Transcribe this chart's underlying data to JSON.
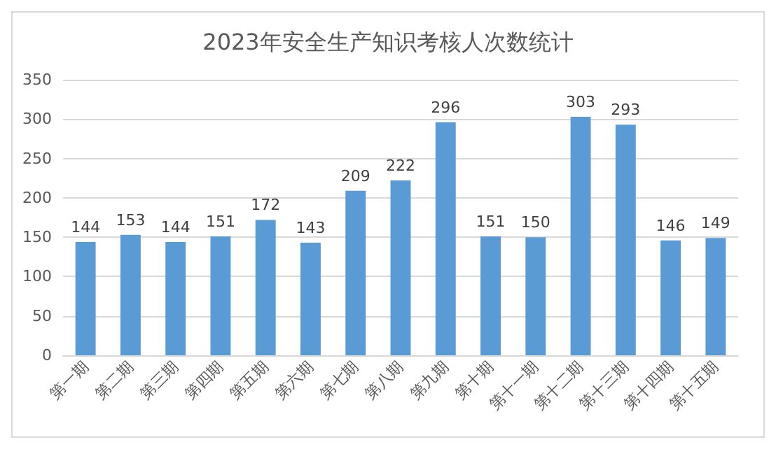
{
  "chart_data": {
    "type": "bar",
    "title": "2023年安全生产知识考核人次数统计",
    "categories": [
      "第一期",
      "第二期",
      "第三期",
      "第四期",
      "第五期",
      "第六期",
      "第七期",
      "第八期",
      "第九期",
      "第十期",
      "第十一期",
      "第十二期",
      "第十三期",
      "第十四期",
      "第十五期"
    ],
    "values": [
      144,
      153,
      144,
      151,
      172,
      143,
      209,
      222,
      296,
      151,
      150,
      303,
      293,
      146,
      149
    ],
    "color": "#5b9bd5",
    "ylim": [
      0,
      350
    ],
    "yticks": [
      0,
      50,
      100,
      150,
      200,
      250,
      300,
      350
    ],
    "grid": "y",
    "data_labels": true
  }
}
